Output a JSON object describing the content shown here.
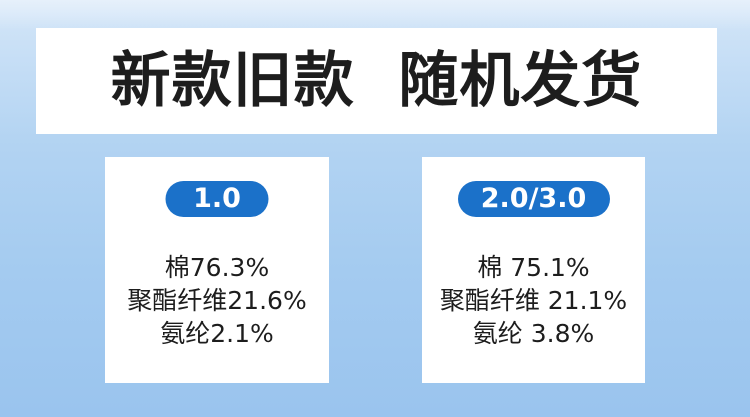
{
  "header": {
    "title": "新款旧款  随机发货"
  },
  "cards": [
    {
      "badge": "1.0",
      "lines": [
        "棉76.3%",
        "聚酯纤维21.6%",
        "氨纶2.1%"
      ]
    },
    {
      "badge": "2.0/3.0",
      "lines": [
        "棉 75.1%",
        "聚酯纤维 21.1%",
        "氨纶 3.8%"
      ]
    }
  ],
  "colors": {
    "badge_background": "#1b71c9",
    "text": "#1d1d1d",
    "card_background": "#ffffff",
    "page_background": "#a4cbf0"
  }
}
